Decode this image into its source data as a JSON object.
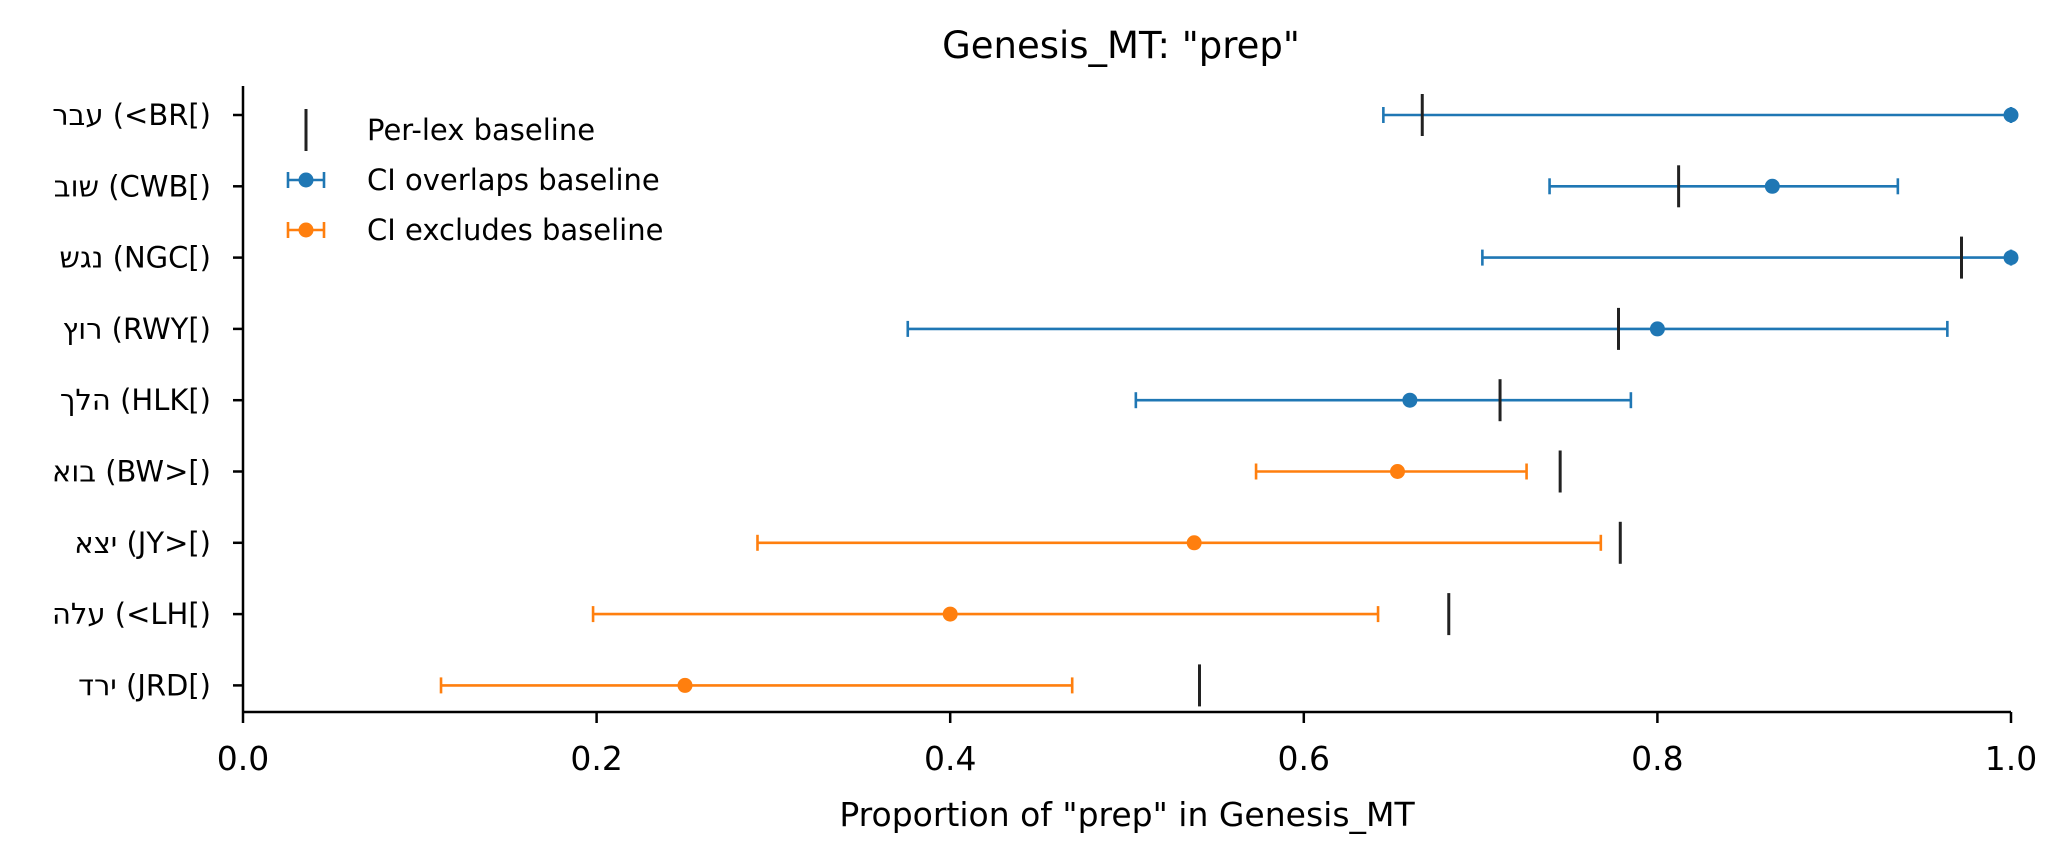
{
  "chart_data": {
    "type": "scatter",
    "title": "Genesis_MT: \"prep\"",
    "xlabel": "Proportion of \"prep\" in Genesis_MT",
    "ylabel": "",
    "xlim": [
      0.0,
      1.0
    ],
    "xticks": [
      "0.0",
      "0.2",
      "0.4",
      "0.6",
      "0.8",
      "1.0"
    ],
    "grid": false,
    "legend_position": "top-left",
    "legend": [
      {
        "key": "baseline",
        "label": "Per-lex baseline"
      },
      {
        "key": "overlap",
        "label": "CI overlaps baseline"
      },
      {
        "key": "exclude",
        "label": "CI excludes baseline"
      }
    ],
    "colors": {
      "overlap": "#1f77b4",
      "exclude": "#ff7f0e",
      "baseline": "#222222"
    },
    "categories": [
      {
        "label": "עבר (<BR[)",
        "estimate": 1.0,
        "ci": [
          0.645,
          1.0
        ],
        "baseline": 0.667,
        "group": "overlap"
      },
      {
        "label": "שוב (CWB[)",
        "estimate": 0.865,
        "ci": [
          0.739,
          0.936
        ],
        "baseline": 0.812,
        "group": "overlap"
      },
      {
        "label": "נגש (NGC[)",
        "estimate": 1.0,
        "ci": [
          0.701,
          1.0
        ],
        "baseline": 0.972,
        "group": "overlap"
      },
      {
        "label": "רוץ (RWY[)",
        "estimate": 0.8,
        "ci": [
          0.376,
          0.964
        ],
        "baseline": 0.778,
        "group": "overlap"
      },
      {
        "label": "הלך (HLK[)",
        "estimate": 0.66,
        "ci": [
          0.505,
          0.785
        ],
        "baseline": 0.711,
        "group": "overlap"
      },
      {
        "label": "בוא (BW>[)",
        "estimate": 0.653,
        "ci": [
          0.573,
          0.726
        ],
        "baseline": 0.745,
        "group": "exclude"
      },
      {
        "label": "יצא (JY>[)",
        "estimate": 0.538,
        "ci": [
          0.291,
          0.768
        ],
        "baseline": 0.779,
        "group": "exclude"
      },
      {
        "label": "עלה (<LH[)",
        "estimate": 0.4,
        "ci": [
          0.198,
          0.642
        ],
        "baseline": 0.682,
        "group": "exclude"
      },
      {
        "label": "ירד (JRD[)",
        "estimate": 0.25,
        "ci": [
          0.112,
          0.469
        ],
        "baseline": 0.541,
        "group": "exclude"
      }
    ]
  }
}
